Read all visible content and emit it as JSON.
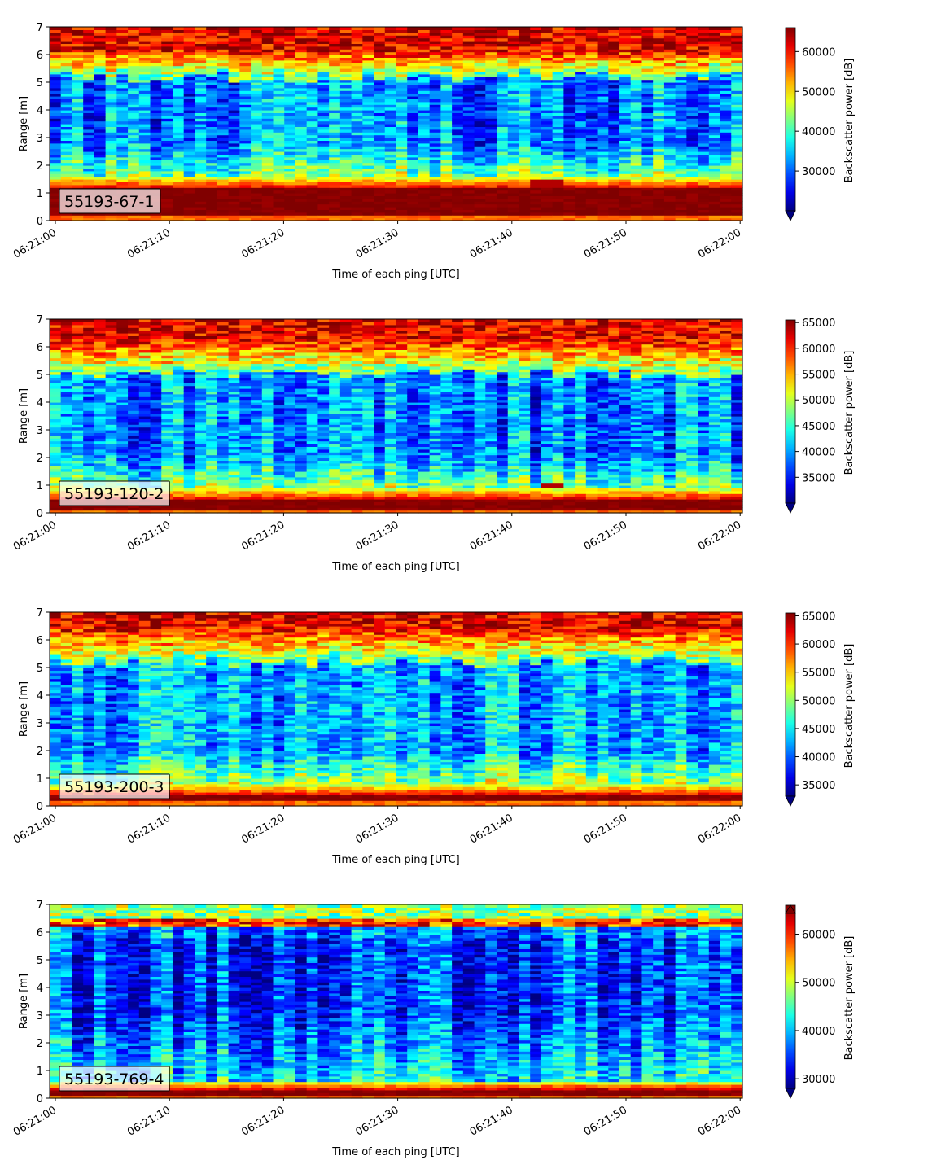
{
  "chart_data": [
    {
      "type": "heatmap",
      "label": "55193-67-1",
      "xlabel": "Time of each ping [UTC]",
      "ylabel": "Range [m]",
      "colorbar_label": "Backscatter power [dB]",
      "colormap": "jet",
      "xlim": [
        "06:21:00",
        "06:22:00"
      ],
      "xticks": [
        "06:21:00",
        "06:21:10",
        "06:21:20",
        "06:21:30",
        "06:21:40",
        "06:21:50",
        "06:22:00"
      ],
      "ylim": [
        0,
        7
      ],
      "yticks": [
        "0",
        "1",
        "2",
        "3",
        "4",
        "5",
        "6",
        "7"
      ],
      "clim": [
        20000,
        66000
      ],
      "cticks": [
        30000,
        40000,
        50000,
        60000
      ],
      "extend": "min",
      "profile": {
        "bottom_peak": [
          0.2,
          1.2
        ],
        "bottom_edge": 1.6,
        "noise_low": 28000,
        "surface_edge": 5.2,
        "surface_peak": 6.2
      },
      "anomaly": {
        "t_start": "06:21:42",
        "t_end": "06:21:44",
        "range": [
          1.2,
          1.5
        ]
      }
    },
    {
      "type": "heatmap",
      "label": "55193-120-2",
      "xlabel": "Time of each ping [UTC]",
      "ylabel": "Range [m]",
      "colorbar_label": "Backscatter power [dB]",
      "colormap": "jet",
      "xlim": [
        "06:21:00",
        "06:22:00"
      ],
      "xticks": [
        "06:21:00",
        "06:21:10",
        "06:21:20",
        "06:21:30",
        "06:21:40",
        "06:21:50",
        "06:22:00"
      ],
      "ylim": [
        0,
        7
      ],
      "yticks": [
        "0",
        "1",
        "2",
        "3",
        "4",
        "5",
        "6",
        "7"
      ],
      "clim": [
        30000,
        65500
      ],
      "cticks": [
        35000,
        40000,
        45000,
        50000,
        55000,
        60000,
        65000
      ],
      "extend": "min",
      "profile": {
        "bottom_peak": [
          0.1,
          0.5
        ],
        "bottom_edge": 0.9,
        "noise_low": 36000,
        "surface_edge": 5.0,
        "surface_peak": 6.3
      },
      "anomaly": {
        "t_start": "06:21:43",
        "t_end": "06:21:44",
        "range": [
          0.9,
          1.1
        ]
      }
    },
    {
      "type": "heatmap",
      "label": "55193-200-3",
      "xlabel": "Time of each ping [UTC]",
      "ylabel": "Range [m]",
      "colorbar_label": "Backscatter power [dB]",
      "colormap": "jet",
      "xlim": [
        "06:21:00",
        "06:22:00"
      ],
      "xticks": [
        "06:21:00",
        "06:21:10",
        "06:21:20",
        "06:21:30",
        "06:21:40",
        "06:21:50",
        "06:22:00"
      ],
      "ylim": [
        0,
        7
      ],
      "yticks": [
        "0",
        "1",
        "2",
        "3",
        "4",
        "5",
        "6",
        "7"
      ],
      "clim": [
        33000,
        65500
      ],
      "cticks": [
        35000,
        40000,
        45000,
        50000,
        55000,
        60000,
        65000
      ],
      "extend": "min",
      "profile": {
        "bottom_peak": [
          0.2,
          0.4
        ],
        "bottom_edge": 0.8,
        "noise_low": 40000,
        "surface_edge": 5.2,
        "surface_peak": 6.5
      },
      "anomaly": null
    },
    {
      "type": "heatmap",
      "label": "55193-769-4",
      "xlabel": "Time of each ping [UTC]",
      "ylabel": "Range [m]",
      "colorbar_label": "Backscatter power [dB]",
      "colormap": "jet",
      "xlim": [
        "06:21:00",
        "06:22:00"
      ],
      "xticks": [
        "06:21:00",
        "06:21:10",
        "06:21:20",
        "06:21:30",
        "06:21:40",
        "06:21:50",
        "06:22:00"
      ],
      "ylim": [
        0,
        7
      ],
      "yticks": [
        "0",
        "1",
        "2",
        "3",
        "4",
        "5",
        "6",
        "7"
      ],
      "clim": [
        28000,
        66000
      ],
      "cticks": [
        30000,
        40000,
        50000,
        60000
      ],
      "extend": "both",
      "profile": {
        "bottom_peak": [
          0.15,
          0.35
        ],
        "bottom_edge": 0.6,
        "noise_low": 33000,
        "surface_band": [
          6.2,
          6.5
        ],
        "surface_peak": 6.4
      },
      "anomaly": null
    }
  ]
}
